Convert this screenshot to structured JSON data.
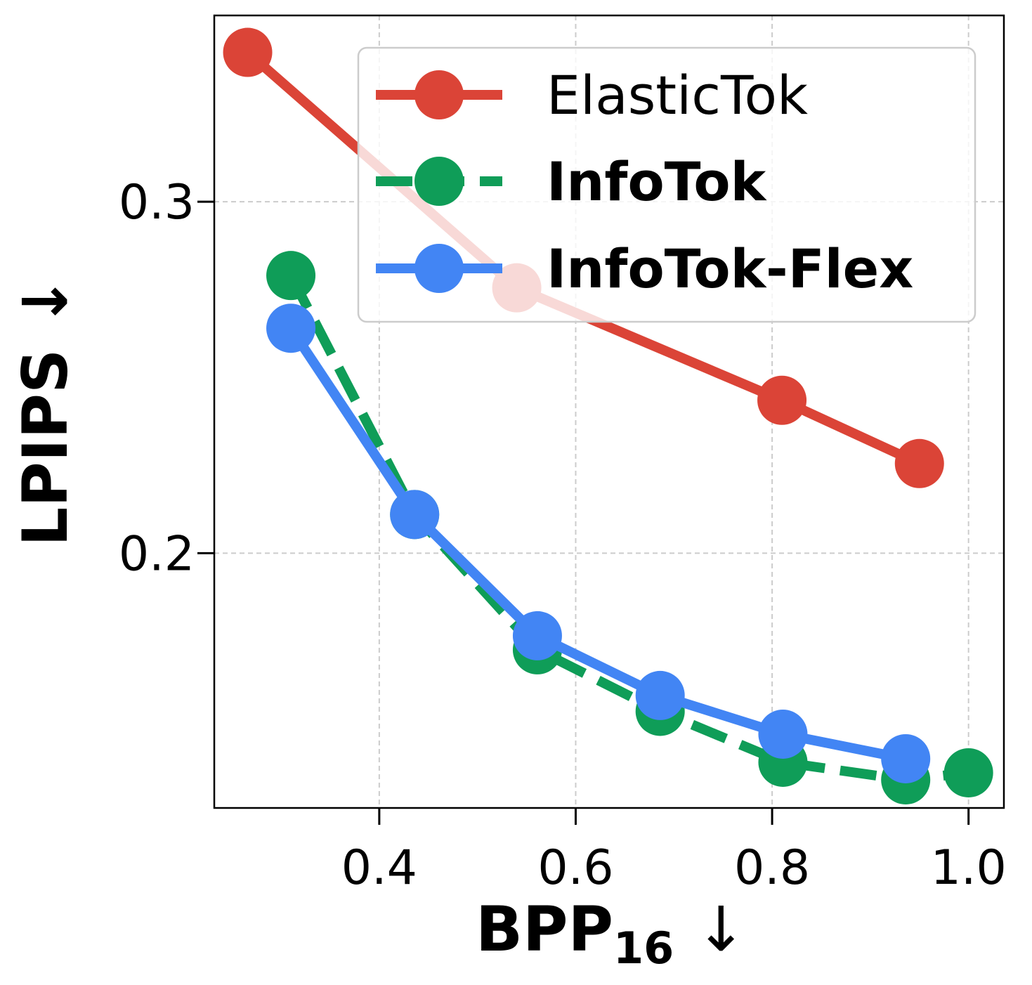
{
  "chart_data": {
    "type": "line",
    "xlabel": "BPP",
    "xlabel_subscript": "16",
    "xlabel_arrow": "↓",
    "ylabel": "LPIPS ↓",
    "xlim": [
      0.232,
      1.036
    ],
    "ylim": [
      0.1275,
      0.353
    ],
    "xticks": [
      {
        "value": 0.4,
        "label": "0.4"
      },
      {
        "value": 0.6,
        "label": "0.6"
      },
      {
        "value": 0.8,
        "label": "0.8"
      },
      {
        "value": 1.0,
        "label": "1.0"
      }
    ],
    "yticks": [
      {
        "value": 0.2,
        "label": "0.2"
      },
      {
        "value": 0.3,
        "label": "0.3"
      }
    ],
    "grid": true,
    "legend_position": "top-right",
    "series": [
      {
        "name": "ElasticTok",
        "bold": false,
        "color": "#db4437",
        "dashed": false,
        "x": [
          0.266,
          0.54,
          0.81,
          0.95
        ],
        "y": [
          0.3425,
          0.2755,
          0.2435,
          0.2255
        ]
      },
      {
        "name": "InfoTok",
        "bold": true,
        "color": "#0f9d58",
        "dashed": true,
        "x": [
          0.31,
          0.436,
          0.561,
          0.686,
          0.811,
          0.936,
          1.0
        ],
        "y": [
          0.279,
          0.211,
          0.1725,
          0.155,
          0.1405,
          0.1355,
          0.1375
        ]
      },
      {
        "name": "InfoTok-Flex",
        "bold": true,
        "color": "#4285f4",
        "dashed": false,
        "x": [
          0.31,
          0.436,
          0.561,
          0.686,
          0.811,
          0.936
        ],
        "y": [
          0.264,
          0.211,
          0.1765,
          0.1595,
          0.1485,
          0.1415
        ]
      }
    ]
  }
}
